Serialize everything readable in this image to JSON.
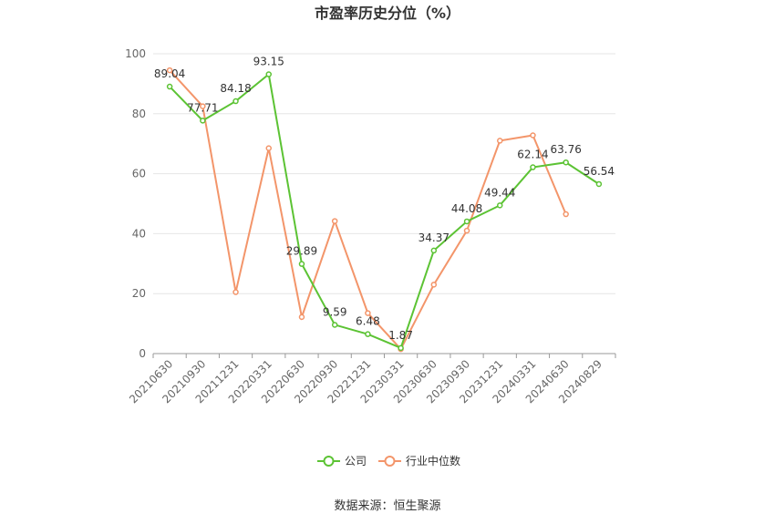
{
  "chart_data": {
    "type": "line",
    "title": "市盈率历史分位（%）",
    "source": "数据来源：恒生聚源",
    "categories": [
      "20210630",
      "20210930",
      "20211231",
      "20220331",
      "20220630",
      "20220930",
      "20221231",
      "20230331",
      "20230630",
      "20230930",
      "20231231",
      "20240331",
      "20240630",
      "20240829"
    ],
    "ylim": [
      0,
      100
    ],
    "yticks": [
      0,
      20,
      40,
      60,
      80,
      100
    ],
    "grid": true,
    "legend_position": "bottom",
    "series": [
      {
        "name": "公司",
        "color": "#5cc334",
        "show_labels": true,
        "values": [
          89.04,
          77.71,
          84.18,
          93.15,
          29.89,
          9.59,
          6.48,
          1.87,
          34.37,
          44.08,
          49.44,
          62.14,
          63.76,
          56.54
        ]
      },
      {
        "name": "行业中位数",
        "color": "#f3956a",
        "show_labels": false,
        "values": [
          94.5,
          82.5,
          20.5,
          68.5,
          12.2,
          44.2,
          13.5,
          1.5,
          23.0,
          41.0,
          71.0,
          72.8,
          46.5,
          null
        ]
      }
    ]
  }
}
